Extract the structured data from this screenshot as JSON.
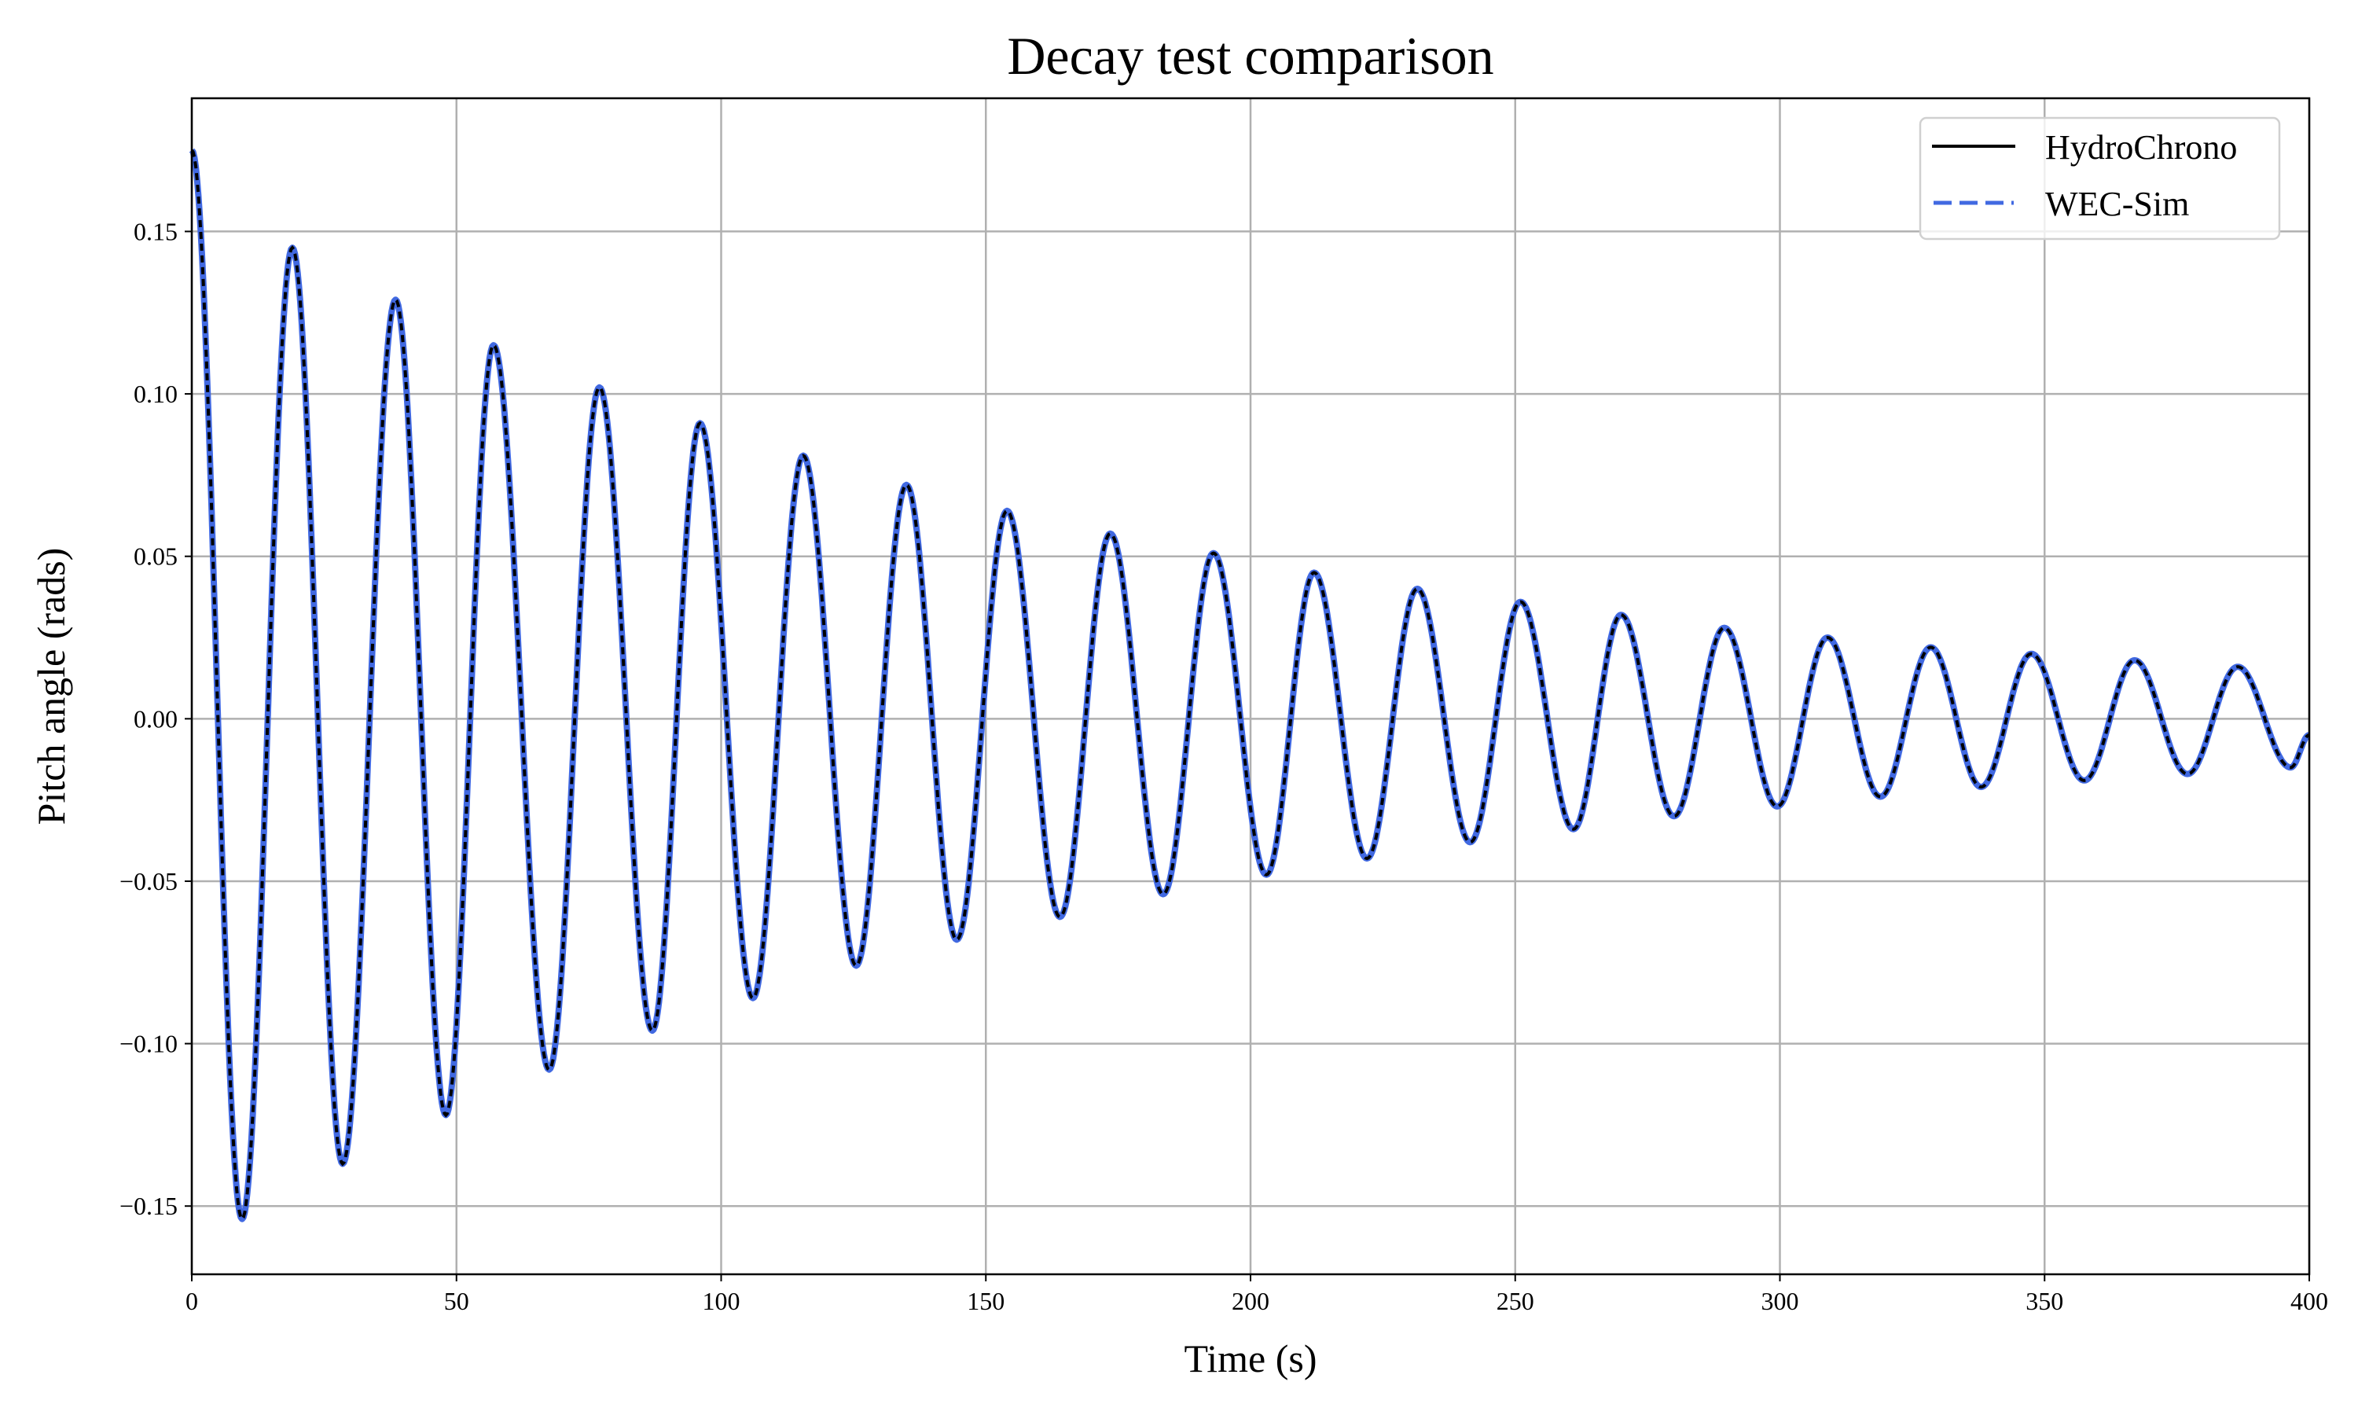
{
  "chart_data": {
    "type": "line",
    "title": "Decay test comparison",
    "xlabel": "Time (s)",
    "ylabel": "Pitch angle (rads)",
    "xlim": [
      0,
      400
    ],
    "ylim": [
      -0.171,
      0.191
    ],
    "xticks": [
      0,
      50,
      100,
      150,
      200,
      250,
      300,
      350,
      400
    ],
    "xtick_labels": [
      "0",
      "50",
      "100",
      "150",
      "200",
      "250",
      "300",
      "350",
      "400"
    ],
    "yticks": [
      -0.15,
      -0.1,
      -0.05,
      0.0,
      0.05,
      0.1,
      0.15
    ],
    "ytick_labels": [
      "−0.15",
      "−0.10",
      "−0.05",
      "0.00",
      "0.05",
      "0.10",
      "0.15"
    ],
    "grid": true,
    "legend_position": "top-right",
    "series": [
      {
        "name": "HydroChrono",
        "color": "#000000",
        "style": "solid",
        "extrema_t": [
          0,
          9.5,
          19,
          28.5,
          38.5,
          48,
          57,
          67.5,
          77,
          87,
          96,
          106,
          115.5,
          125.5,
          135,
          144.5,
          154,
          164,
          173.5,
          183.5,
          193,
          203,
          212,
          222,
          231.5,
          241.5,
          251,
          261,
          270,
          280,
          289.5,
          299.5,
          309,
          319,
          328.5,
          338,
          347.5,
          357.5,
          367,
          377,
          386.5,
          396.5,
          400
        ],
        "extrema_v": [
          0.175,
          -0.154,
          0.145,
          -0.137,
          0.129,
          -0.122,
          0.115,
          -0.108,
          0.102,
          -0.096,
          0.091,
          -0.086,
          0.081,
          -0.076,
          0.072,
          -0.068,
          0.064,
          -0.061,
          0.057,
          -0.054,
          0.051,
          -0.048,
          0.045,
          -0.043,
          0.04,
          -0.038,
          0.036,
          -0.034,
          0.032,
          -0.03,
          0.028,
          -0.027,
          0.025,
          -0.024,
          0.022,
          -0.021,
          0.02,
          -0.019,
          0.018,
          -0.017,
          0.016,
          -0.015,
          -0.005
        ]
      },
      {
        "name": "WEC-Sim",
        "color": "#4169e1",
        "style": "dashed",
        "extrema_t": [
          0,
          9.5,
          19,
          28.5,
          38.5,
          48,
          57,
          67.5,
          77,
          87,
          96,
          106,
          115.5,
          125.5,
          135,
          144.5,
          154,
          164,
          173.5,
          183.5,
          193,
          203,
          212,
          222,
          231.5,
          241.5,
          251,
          261,
          270,
          280,
          289.5,
          299.5,
          309,
          319,
          328.5,
          338,
          347.5,
          357.5,
          367,
          377,
          386.5,
          396.5,
          400
        ],
        "extrema_v": [
          0.175,
          -0.154,
          0.145,
          -0.137,
          0.129,
          -0.122,
          0.115,
          -0.108,
          0.102,
          -0.096,
          0.091,
          -0.086,
          0.081,
          -0.076,
          0.072,
          -0.068,
          0.064,
          -0.061,
          0.057,
          -0.054,
          0.051,
          -0.048,
          0.045,
          -0.043,
          0.04,
          -0.038,
          0.036,
          -0.034,
          0.032,
          -0.03,
          0.028,
          -0.027,
          0.025,
          -0.024,
          0.022,
          -0.021,
          0.02,
          -0.019,
          0.018,
          -0.017,
          0.016,
          -0.015,
          -0.005
        ]
      }
    ]
  }
}
